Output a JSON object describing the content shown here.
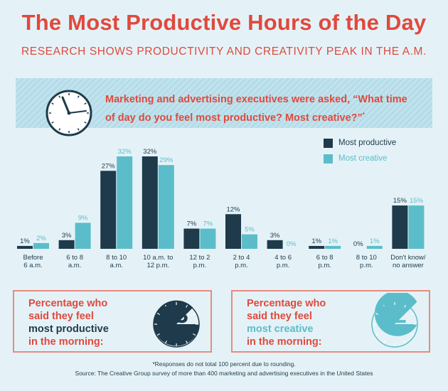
{
  "header": {
    "title": "The Most Productive Hours of the Day",
    "subtitle": "RESEARCH SHOWS PRODUCTIVITY AND CREATIVITY PEAK IN THE A.M."
  },
  "banner": {
    "question": "Marketing and advertising executives were asked, “What time of day do you feel most productive? Most creative?”",
    "question_mark": "*"
  },
  "colors": {
    "productive": "#1f3a4a",
    "creative": "#5bbdc9",
    "accent": "#e0493c"
  },
  "chart_data": {
    "type": "bar",
    "categories": [
      [
        "Before",
        "6 a.m."
      ],
      [
        "6 to 8",
        "a.m."
      ],
      [
        "8 to 10",
        "a.m."
      ],
      [
        "10 a.m. to",
        "12 p.m."
      ],
      [
        "12 to 2",
        "p.m."
      ],
      [
        "2 to 4",
        "p.m."
      ],
      [
        "4 to 6",
        "p.m."
      ],
      [
        "6 to 8",
        "p.m."
      ],
      [
        "8 to 10",
        "p.m."
      ],
      [
        "Don't know/",
        "no answer"
      ]
    ],
    "series": [
      {
        "name": "Most productive",
        "values": [
          1,
          3,
          27,
          32,
          7,
          12,
          3,
          1,
          0,
          15
        ]
      },
      {
        "name": "Most creative",
        "values": [
          2,
          9,
          32,
          29,
          7,
          5,
          0,
          1,
          1,
          15
        ]
      }
    ],
    "value_suffix": "%",
    "ylim": [
      0,
      32
    ],
    "legend_position": "top-right"
  },
  "panels": {
    "left": {
      "line1": "Percentage who",
      "line2": "said they feel",
      "line3": "most productive",
      "line4": "in the morning:",
      "value": "63",
      "fraction": 0.63
    },
    "right": {
      "line1": "Percentage who",
      "line2": "said they feel",
      "line3": "most creative",
      "line4": "in the morning:",
      "value": "72",
      "fraction": 0.72
    }
  },
  "footnote": {
    "note": "*Responses do not total 100 percent due to rounding.",
    "source": "Source: The Creative Group survey of more than 400 marketing and advertising executives in the United States"
  }
}
